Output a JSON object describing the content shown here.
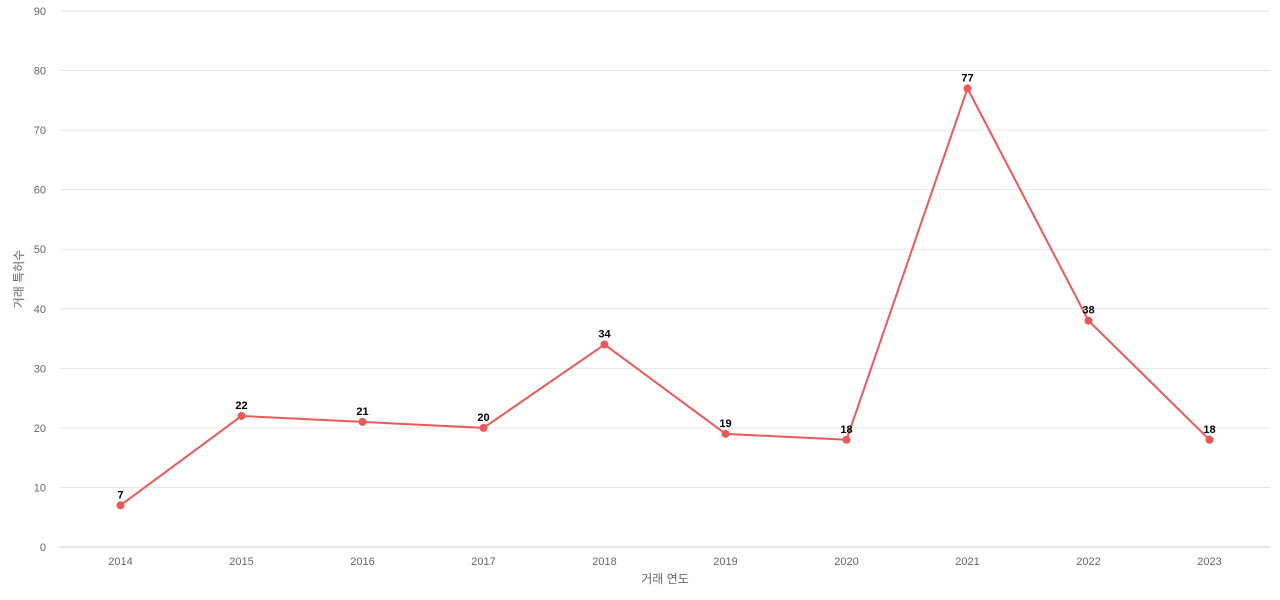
{
  "chart_data": {
    "type": "line",
    "title": "",
    "xlabel": "거래 연도",
    "ylabel": "거래 특허수",
    "categories": [
      "2014",
      "2015",
      "2016",
      "2017",
      "2018",
      "2019",
      "2020",
      "2021",
      "2022",
      "2023"
    ],
    "series": [
      {
        "values": [
          7,
          22,
          21,
          20,
          34,
          19,
          18,
          77,
          38,
          18
        ],
        "color": "#e85a5a"
      }
    ],
    "ylim": [
      0,
      90
    ],
    "yticks": [
      0,
      10,
      20,
      30,
      40,
      50,
      60,
      70,
      80,
      90
    ],
    "grid": true,
    "legend": "none",
    "data_labels": true
  }
}
